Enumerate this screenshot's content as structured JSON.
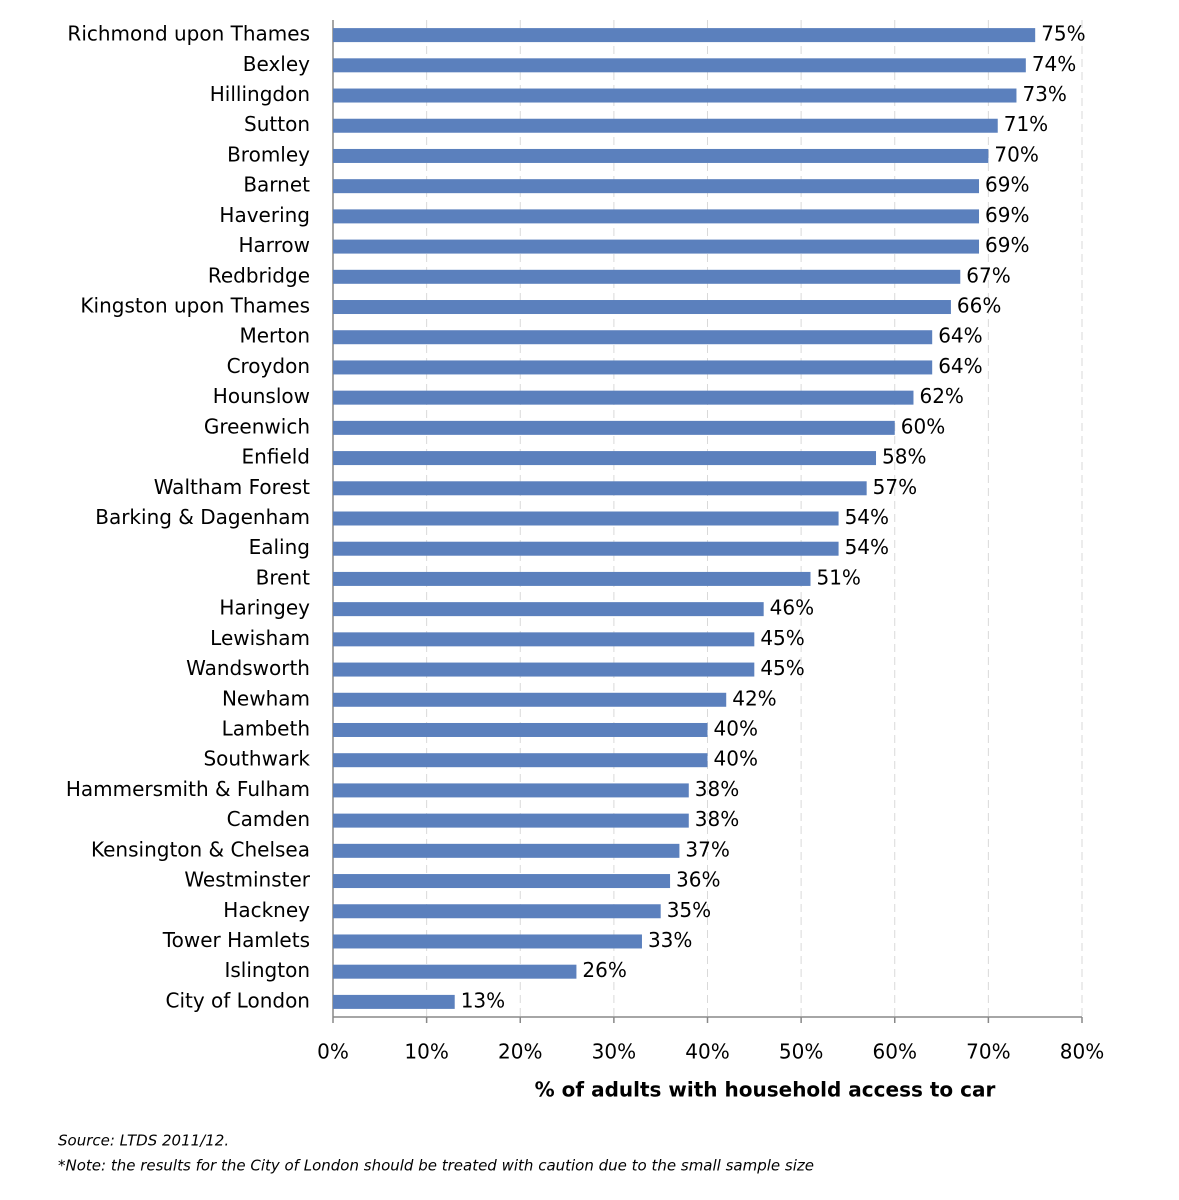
{
  "chart_data": {
    "type": "bar",
    "orientation": "horizontal",
    "categories": [
      "Richmond upon Thames",
      "Bexley",
      "Hillingdon",
      "Sutton",
      "Bromley",
      "Barnet",
      "Havering",
      "Harrow",
      "Redbridge",
      "Kingston upon Thames",
      "Merton",
      "Croydon",
      "Hounslow",
      "Greenwich",
      "Enfield",
      "Waltham Forest",
      "Barking & Dagenham",
      "Ealing",
      "Brent",
      "Haringey",
      "Lewisham",
      "Wandsworth",
      "Newham",
      "Lambeth",
      "Southwark",
      "Hammersmith & Fulham",
      "Camden",
      "Kensington & Chelsea",
      "Westminster",
      "Hackney",
      "Tower Hamlets",
      "Islington",
      "City of London"
    ],
    "values": [
      75,
      74,
      73,
      71,
      70,
      69,
      69,
      69,
      67,
      66,
      64,
      64,
      62,
      60,
      58,
      57,
      54,
      54,
      51,
      46,
      45,
      45,
      42,
      40,
      40,
      38,
      38,
      37,
      36,
      35,
      33,
      26,
      13
    ],
    "value_labels": [
      "75%",
      "74%",
      "73%",
      "71%",
      "70%",
      "69%",
      "69%",
      "69%",
      "67%",
      "66%",
      "64%",
      "64%",
      "62%",
      "60%",
      "58%",
      "57%",
      "54%",
      "54%",
      "51%",
      "46%",
      "45%",
      "45%",
      "42%",
      "40%",
      "40%",
      "38%",
      "38%",
      "37%",
      "36%",
      "35%",
      "33%",
      "26%",
      "13%"
    ],
    "color": "#5b80bd",
    "xlim": [
      0,
      80
    ],
    "xticks": [
      {
        "value": 0,
        "label": "0%"
      },
      {
        "value": 10,
        "label": "10%"
      },
      {
        "value": 20,
        "label": "20%"
      },
      {
        "value": 30,
        "label": "30%"
      },
      {
        "value": 40,
        "label": "40%"
      },
      {
        "value": 50,
        "label": "50%"
      },
      {
        "value": 60,
        "label": "60%"
      },
      {
        "value": 70,
        "label": "70%"
      },
      {
        "value": 80,
        "label": "80%"
      }
    ],
    "xlabel": "% of adults with household  access to car",
    "grid": true,
    "notes": [
      "Source: LTDS 2011/12.",
      "*Note: the results for the City of London should be treated with caution due to the small sample size"
    ]
  }
}
